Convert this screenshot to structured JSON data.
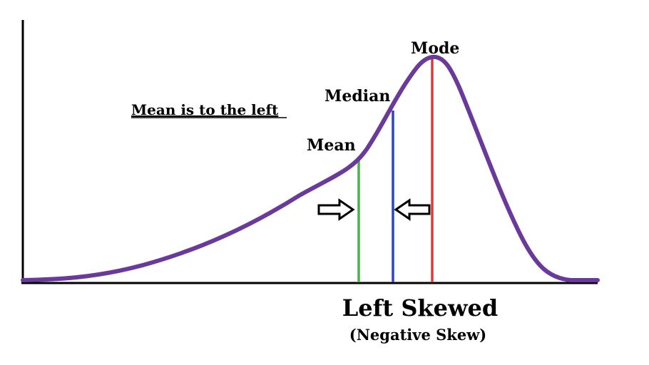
{
  "diagram": {
    "note": "Mean is to the left",
    "labels": {
      "mean": "Mean",
      "median": "Median",
      "mode": "Mode"
    },
    "title": "Left Skewed",
    "subtitle": "(Negative Skew)",
    "colors": {
      "curve": "#6a3a9a",
      "mean_line": "#4caf50",
      "median_line": "#2b44c8",
      "mode_line": "#d93a3a",
      "axis": "#000000",
      "text": "#000000",
      "arrow_fill": "#ffffff"
    },
    "icons": {
      "mean_arrow": "right-outline-arrow-icon",
      "median_arrow": "left-outline-arrow-icon"
    }
  }
}
